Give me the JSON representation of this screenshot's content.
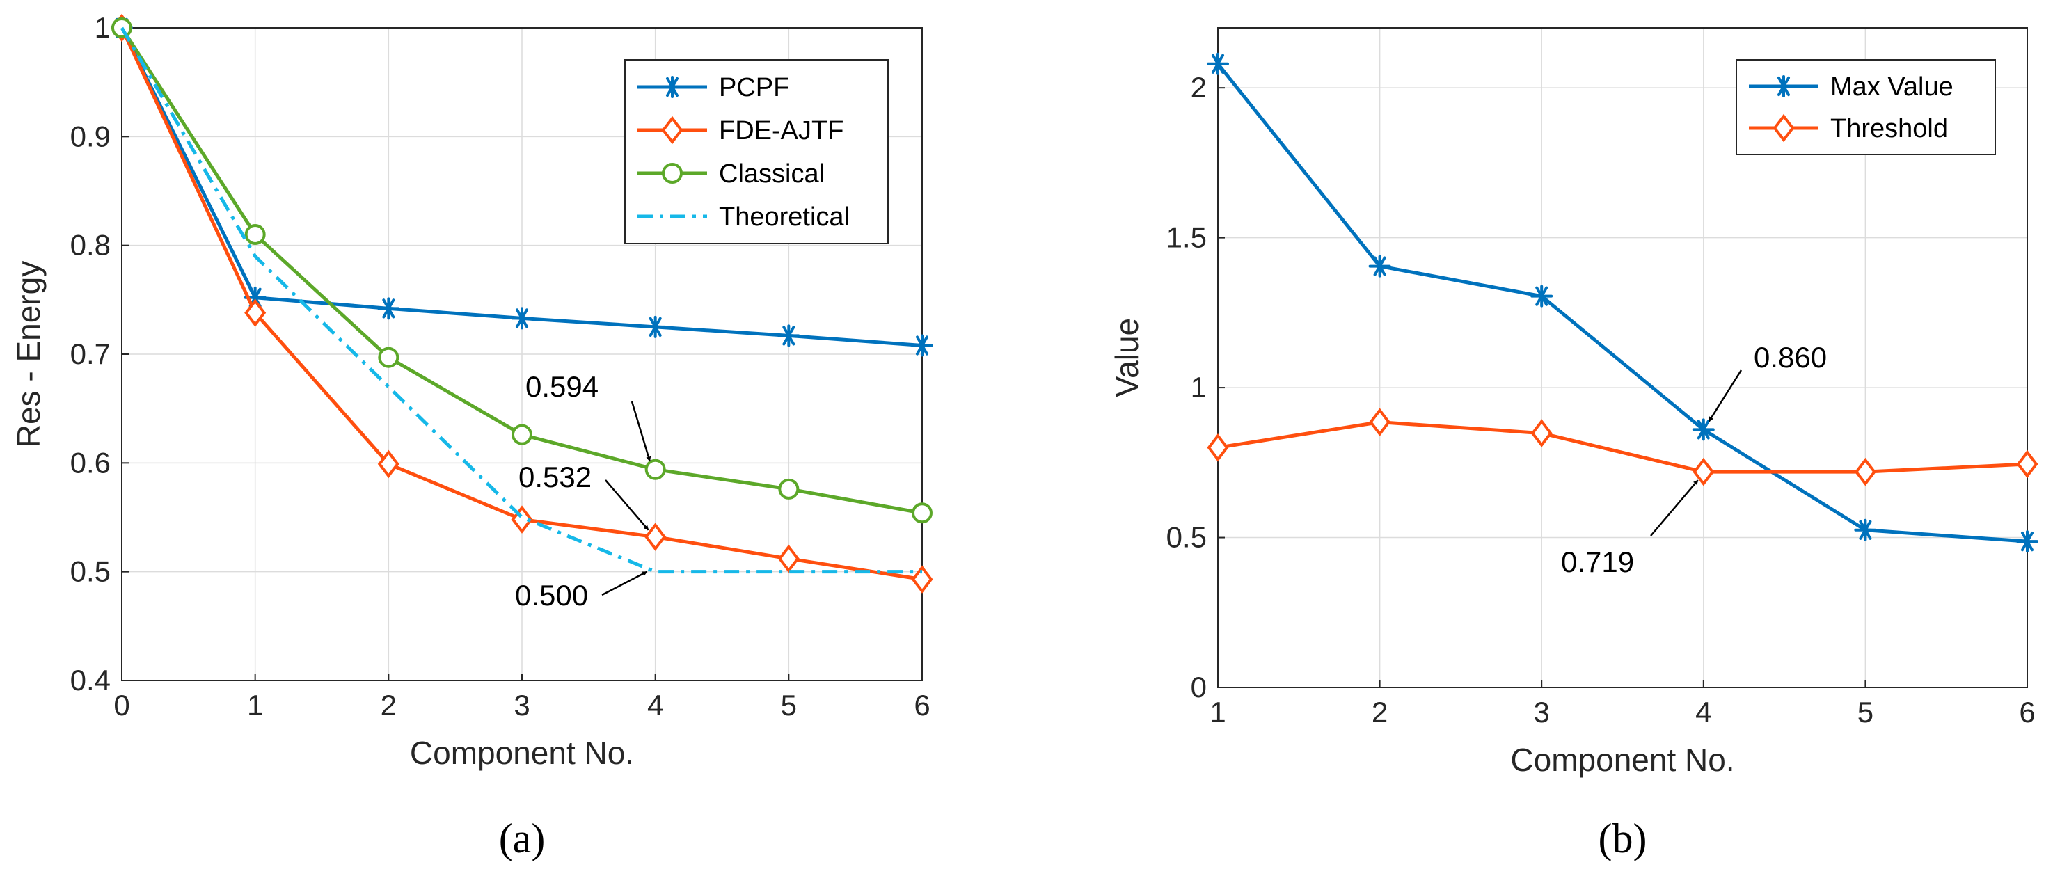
{
  "chart_data": [
    {
      "type": "line",
      "panel_label": "(a)",
      "xlabel": "Component No.",
      "ylabel": "Res - Energy",
      "xlim": [
        0,
        6
      ],
      "ylim": [
        0.4,
        1
      ],
      "xticks": [
        "0",
        "1",
        "2",
        "3",
        "4",
        "5",
        "6"
      ],
      "yticks": [
        "0.4",
        "0.5",
        "0.6",
        "0.7",
        "0.8",
        "0.9",
        "1"
      ],
      "grid": true,
      "legend_position": "top-right",
      "series": [
        {
          "name": "PCPF",
          "x": [
            0,
            1,
            2,
            3,
            4,
            5,
            6
          ],
          "values": [
            1.0,
            0.752,
            0.742,
            0.733,
            0.725,
            0.717,
            0.708
          ],
          "color": "#0072BD",
          "marker": "asterisk",
          "linestyle": "solid"
        },
        {
          "name": "FDE-AJTF",
          "x": [
            0,
            1,
            2,
            3,
            4,
            5,
            6
          ],
          "values": [
            1.0,
            0.738,
            0.599,
            0.548,
            0.532,
            0.512,
            0.493
          ],
          "color": "#FF4F0F",
          "marker": "diamond",
          "linestyle": "solid"
        },
        {
          "name": "Classical",
          "x": [
            0,
            1,
            2,
            3,
            4,
            5,
            6
          ],
          "values": [
            1.0,
            0.81,
            0.697,
            0.626,
            0.594,
            0.576,
            0.554
          ],
          "color": "#5CA829",
          "marker": "circle",
          "linestyle": "solid"
        },
        {
          "name": "Theoretical",
          "x": [
            0,
            1,
            2,
            3,
            4,
            5,
            6
          ],
          "values": [
            1.0,
            0.79,
            0.67,
            0.55,
            0.5,
            0.5,
            0.5
          ],
          "color": "#16B8E8",
          "marker": "none",
          "linestyle": "dashdot"
        }
      ],
      "annotations": [
        {
          "text": "0.594",
          "x": 4,
          "y": 0.594
        },
        {
          "text": "0.532",
          "x": 4,
          "y": 0.532
        },
        {
          "text": "0.500",
          "x": 4,
          "y": 0.5
        }
      ]
    },
    {
      "type": "line",
      "panel_label": "(b)",
      "xlabel": "Component No.",
      "ylabel": "Value",
      "xlim": [
        1,
        6
      ],
      "ylim": [
        0,
        2.2
      ],
      "xticks": [
        "1",
        "2",
        "3",
        "4",
        "5",
        "6"
      ],
      "yticks": [
        "0",
        "0.5",
        "1",
        "1.5",
        "2"
      ],
      "grid": true,
      "legend_position": "top-right",
      "series": [
        {
          "name": "Max Value",
          "x": [
            1,
            2,
            3,
            4,
            5,
            6
          ],
          "values": [
            2.08,
            1.405,
            1.305,
            0.86,
            0.525,
            0.487
          ],
          "color": "#0072BD",
          "marker": "asterisk",
          "linestyle": "solid"
        },
        {
          "name": "Threshold",
          "x": [
            1,
            2,
            3,
            4,
            5,
            6
          ],
          "values": [
            0.8,
            0.885,
            0.848,
            0.719,
            0.719,
            0.745
          ],
          "color": "#FF4F0F",
          "marker": "diamond",
          "linestyle": "solid"
        }
      ],
      "annotations": [
        {
          "text": "0.860",
          "x": 4,
          "y": 0.86
        },
        {
          "text": "0.719",
          "x": 4,
          "y": 0.719
        }
      ]
    }
  ]
}
